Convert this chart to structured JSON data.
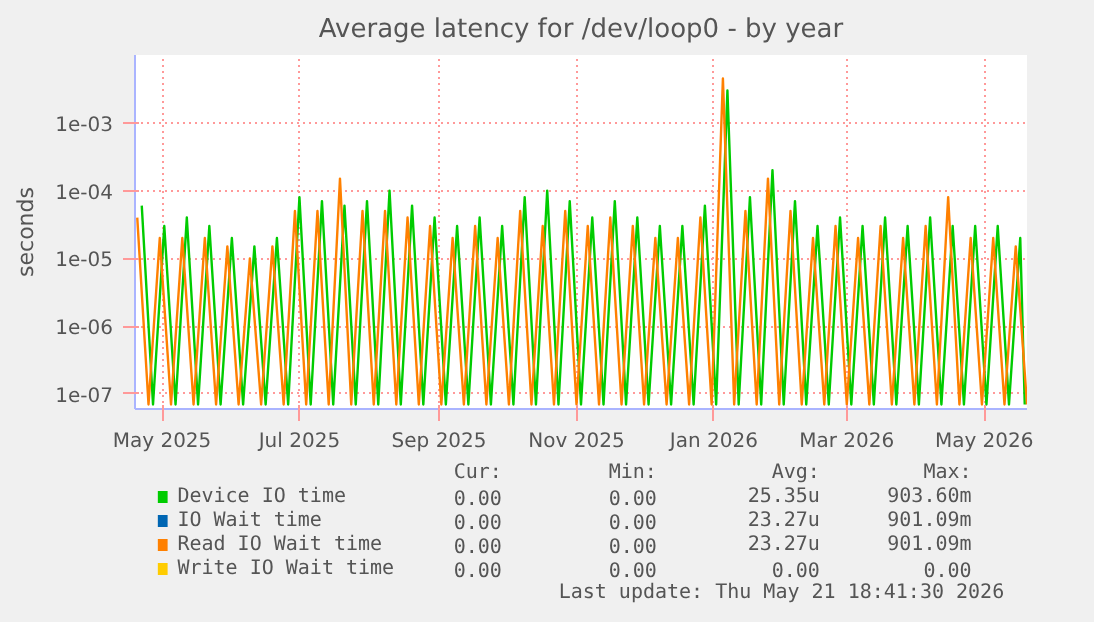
{
  "chart_data": {
    "type": "line",
    "title": "Average latency for /dev/loop0 - by year",
    "ylabel": "seconds",
    "log": true,
    "grid": true,
    "legend": "bottom",
    "marker": "none",
    "line_style": "solid",
    "xlim": [
      "2025-04-19",
      "2026-05-20"
    ],
    "xticks": [
      {
        "value": "2025-05-01",
        "label": "May 2025"
      },
      {
        "value": "2025-07-01",
        "label": "Jul 2025"
      },
      {
        "value": "2025-09-01",
        "label": "Sep 2025"
      },
      {
        "value": "2025-11-01",
        "label": "Nov 2025"
      },
      {
        "value": "2026-01-01",
        "label": "Jan 2026"
      },
      {
        "value": "2026-03-01",
        "label": "Mar 2026"
      },
      {
        "value": "2026-05-01",
        "label": "May 2026"
      }
    ],
    "ylim": [
      6e-08,
      0.01
    ],
    "yticks": [
      {
        "value": 1e-07,
        "label": "1e-07"
      },
      {
        "value": 1e-06,
        "label": "1e-06"
      },
      {
        "value": 1e-05,
        "label": "1e-05"
      },
      {
        "value": 0.0001,
        "label": "1e-04"
      },
      {
        "value": 0.001,
        "label": "1e-03"
      }
    ],
    "x": [
      "2025-04-20",
      "2025-04-25",
      "2025-04-30",
      "2025-05-05",
      "2025-05-10",
      "2025-05-15",
      "2025-05-20",
      "2025-05-25",
      "2025-05-30",
      "2025-06-04",
      "2025-06-09",
      "2025-06-14",
      "2025-06-19",
      "2025-06-24",
      "2025-06-29",
      "2025-07-04",
      "2025-07-09",
      "2025-07-14",
      "2025-07-19",
      "2025-07-24",
      "2025-07-29",
      "2025-08-03",
      "2025-08-08",
      "2025-08-13",
      "2025-08-18",
      "2025-08-23",
      "2025-08-28",
      "2025-09-02",
      "2025-09-07",
      "2025-09-12",
      "2025-09-17",
      "2025-09-22",
      "2025-09-27",
      "2025-10-02",
      "2025-10-07",
      "2025-10-12",
      "2025-10-17",
      "2025-10-22",
      "2025-10-27",
      "2025-11-01",
      "2025-11-06",
      "2025-11-11",
      "2025-11-16",
      "2025-11-21",
      "2025-11-26",
      "2025-12-01",
      "2025-12-06",
      "2025-12-11",
      "2025-12-16",
      "2025-12-21",
      "2025-12-26",
      "2025-12-31",
      "2026-01-05",
      "2026-01-10",
      "2026-01-15",
      "2026-01-20",
      "2026-01-25",
      "2026-01-30",
      "2026-02-04",
      "2026-02-09",
      "2026-02-14",
      "2026-02-19",
      "2026-02-24",
      "2026-03-01",
      "2026-03-06",
      "2026-03-11",
      "2026-03-16",
      "2026-03-21",
      "2026-03-26",
      "2026-03-31",
      "2026-04-05",
      "2026-04-10",
      "2026-04-15",
      "2026-04-20",
      "2026-04-25",
      "2026-04-30",
      "2026-05-05",
      "2026-05-10",
      "2026-05-15",
      "2026-05-20"
    ],
    "series": [
      {
        "name": "Device IO time",
        "color": "#00cc00",
        "x": [
          "2025-04-22",
          "2025-04-27",
          "2025-05-02",
          "2025-05-07",
          "2025-05-12",
          "2025-05-17",
          "2025-05-22",
          "2025-05-27",
          "2025-06-01",
          "2025-06-06",
          "2025-06-11",
          "2025-06-16",
          "2025-06-21",
          "2025-06-26",
          "2025-07-01",
          "2025-07-06",
          "2025-07-11",
          "2025-07-16",
          "2025-07-21",
          "2025-07-26",
          "2025-07-31",
          "2025-08-05",
          "2025-08-10",
          "2025-08-15",
          "2025-08-20",
          "2025-08-25",
          "2025-08-30",
          "2025-09-04",
          "2025-09-09",
          "2025-09-14",
          "2025-09-19",
          "2025-09-24",
          "2025-09-29",
          "2025-10-04",
          "2025-10-09",
          "2025-10-14",
          "2025-10-19",
          "2025-10-24",
          "2025-10-29",
          "2025-11-03",
          "2025-11-08",
          "2025-11-13",
          "2025-11-18",
          "2025-11-23",
          "2025-11-28",
          "2025-12-03",
          "2025-12-08",
          "2025-12-13",
          "2025-12-18",
          "2025-12-23",
          "2025-12-28",
          "2026-01-02",
          "2026-01-07",
          "2026-01-12",
          "2026-01-17",
          "2026-01-22",
          "2026-01-27",
          "2026-02-01",
          "2026-02-06",
          "2026-02-11",
          "2026-02-16",
          "2026-02-21",
          "2026-02-26",
          "2026-03-03",
          "2026-03-08",
          "2026-03-13",
          "2026-03-18",
          "2026-03-23",
          "2026-03-28",
          "2026-04-02",
          "2026-04-07",
          "2026-04-12",
          "2026-04-17",
          "2026-04-22",
          "2026-04-27",
          "2026-05-02",
          "2026-05-07",
          "2026-05-12",
          "2026-05-17",
          "2026-05-19"
        ],
        "values": [
          6e-05,
          7e-08,
          3e-05,
          7e-08,
          4e-05,
          7e-08,
          3e-05,
          7e-08,
          2e-05,
          7e-08,
          1.5e-05,
          7e-08,
          2e-05,
          7e-08,
          8e-05,
          7e-08,
          7e-05,
          7e-08,
          6e-05,
          7e-08,
          7e-05,
          7e-08,
          0.0001,
          7e-08,
          6e-05,
          7e-08,
          4e-05,
          7e-08,
          3e-05,
          7e-08,
          4e-05,
          7e-08,
          3e-05,
          7e-08,
          8e-05,
          7e-08,
          0.0001,
          7e-08,
          7e-05,
          7e-08,
          4e-05,
          7e-08,
          7e-05,
          7e-08,
          4e-05,
          7e-08,
          3e-05,
          7e-08,
          3e-05,
          7e-08,
          6e-05,
          7e-08,
          0.003,
          7e-08,
          8e-05,
          7e-08,
          0.0002,
          7e-08,
          7e-05,
          7e-08,
          3e-05,
          7e-08,
          4e-05,
          7e-08,
          3e-05,
          7e-08,
          4e-05,
          7e-08,
          3e-05,
          7e-08,
          4e-05,
          7e-08,
          3e-05,
          7e-08,
          3e-05,
          7e-08,
          3e-05,
          7e-08,
          2e-05,
          7e-08
        ]
      },
      {
        "name": "IO Wait time",
        "color": "#0066b3",
        "values": [
          null,
          null,
          null,
          null,
          null,
          null,
          null,
          null,
          null,
          null,
          null,
          null,
          null,
          null,
          null,
          null,
          null,
          null,
          null,
          null,
          null,
          null,
          null,
          null,
          null,
          null,
          null,
          null,
          null,
          null,
          null,
          null,
          null,
          null,
          null,
          null,
          null,
          null,
          null,
          null,
          null,
          null,
          null,
          null,
          null,
          null,
          null,
          null,
          null,
          null,
          null,
          null,
          null,
          null,
          null,
          null,
          null,
          null,
          null,
          null,
          null,
          null,
          null,
          null,
          null,
          null,
          null,
          null,
          null,
          null,
          null,
          null,
          null,
          null,
          null,
          null,
          null,
          null,
          null,
          null
        ]
      },
      {
        "name": "Read IO Wait time",
        "color": "#ff8000",
        "values": [
          4e-05,
          7e-08,
          2e-05,
          7e-08,
          2e-05,
          7e-08,
          2e-05,
          7e-08,
          1.5e-05,
          7e-08,
          1e-05,
          7e-08,
          1.5e-05,
          7e-08,
          5e-05,
          7e-08,
          5e-05,
          7e-08,
          0.00015,
          7e-08,
          5e-05,
          7e-08,
          5e-05,
          7e-08,
          4e-05,
          7e-08,
          3e-05,
          7e-08,
          2e-05,
          7e-08,
          3e-05,
          7e-08,
          2e-05,
          7e-08,
          5e-05,
          7e-08,
          3e-05,
          7e-08,
          5e-05,
          7e-08,
          3e-05,
          7e-08,
          4e-05,
          7e-08,
          3e-05,
          7e-08,
          2e-05,
          7e-08,
          2e-05,
          7e-08,
          4e-05,
          7e-08,
          0.0045,
          7e-08,
          5e-05,
          7e-08,
          0.00015,
          7e-08,
          5e-05,
          7e-08,
          2e-05,
          7e-08,
          3e-05,
          7e-08,
          2e-05,
          7e-08,
          3e-05,
          7e-08,
          2e-05,
          7e-08,
          3e-05,
          7e-08,
          8e-05,
          7e-08,
          2e-05,
          7e-08,
          2e-05,
          7e-08,
          1.5e-05,
          7e-08
        ]
      },
      {
        "name": "Write IO Wait time",
        "color": "#ffcc00",
        "values": [
          null,
          null,
          null,
          null,
          null,
          null,
          null,
          null,
          null,
          null,
          null,
          null,
          null,
          null,
          null,
          null,
          null,
          null,
          null,
          null,
          null,
          null,
          null,
          null,
          null,
          null,
          null,
          null,
          null,
          null,
          null,
          null,
          null,
          null,
          null,
          null,
          null,
          null,
          null,
          null,
          null,
          null,
          null,
          null,
          null,
          null,
          null,
          null,
          null,
          null,
          null,
          null,
          null,
          null,
          null,
          null,
          null,
          null,
          null,
          null,
          null,
          null,
          null,
          null,
          null,
          null,
          null,
          null,
          null,
          null,
          null,
          null,
          null,
          null,
          null,
          null,
          null,
          null,
          null,
          null
        ]
      }
    ],
    "annotations": [
      "Cur:",
      "Min:",
      "Avg:",
      "Max:",
      "0.00",
      "0.00",
      "25.35u",
      "903.60m",
      "0.00",
      "0.00",
      "23.27u",
      "901.09m",
      "0.00",
      "0.00",
      "23.27u",
      "901.09m",
      "0.00",
      "0.00",
      "0.00",
      "0.00",
      "Last update: Thu May 21 18:41:30 2026"
    ]
  }
}
